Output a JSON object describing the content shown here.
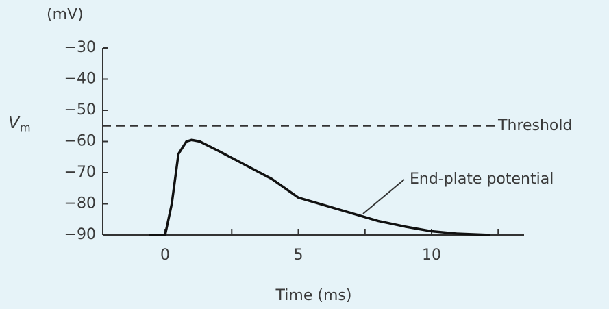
{
  "chart_data": {
    "type": "line",
    "unit_label": "(mV)",
    "ylabel": "V",
    "ylabel_sub": "m",
    "xlabel": "Time (ms)",
    "xlim": [
      -2.34,
      13.47
    ],
    "ylim": [
      -90,
      -30
    ],
    "xticks": [
      0,
      5,
      10
    ],
    "xminor_ticks": [
      2.5,
      7.5,
      12.5
    ],
    "yticks": [
      {
        "value": -30,
        "label": "−30"
      },
      {
        "value": -40,
        "label": "−40"
      },
      {
        "value": -50,
        "label": "−50"
      },
      {
        "value": -60,
        "label": "−60"
      },
      {
        "value": -70,
        "label": "−70"
      },
      {
        "value": -80,
        "label": "−80"
      },
      {
        "value": -90,
        "label": "−90"
      }
    ],
    "threshold": {
      "value": -55,
      "label": "Threshold",
      "color": "#333333"
    },
    "x": [
      -0.6,
      0,
      0.25,
      0.5,
      0.8,
      1.0,
      1.3,
      2,
      3,
      4,
      5,
      6,
      7,
      8,
      9,
      10,
      11,
      12.2
    ],
    "series": [
      {
        "name": "End-plate potential",
        "color": "#111111",
        "values": [
          -90,
          -90,
          -80,
          -64,
          -60,
          -59.5,
          -60,
          -63,
          -67.5,
          -72,
          -78,
          -80.5,
          -83,
          -85.5,
          -87.3,
          -88.8,
          -89.6,
          -90
        ]
      }
    ]
  }
}
